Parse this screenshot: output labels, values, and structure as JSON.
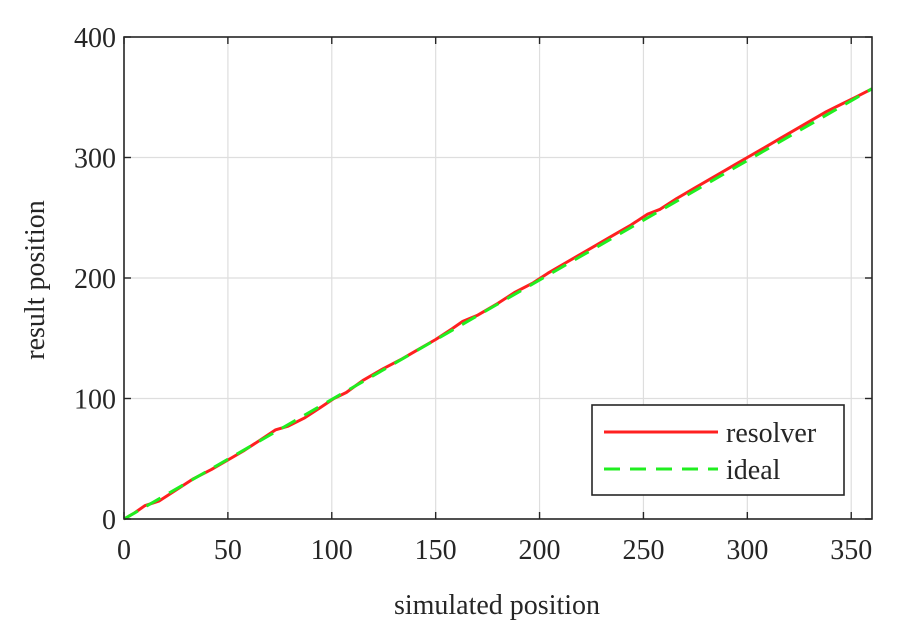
{
  "chart_data": {
    "type": "line",
    "title": "",
    "xlabel": "simulated position",
    "ylabel": "result position",
    "xlim": [
      0,
      360
    ],
    "ylim": [
      0,
      400
    ],
    "xticks": [
      0,
      50,
      100,
      150,
      200,
      250,
      300,
      350
    ],
    "yticks": [
      0,
      100,
      200,
      300,
      400
    ],
    "grid": true,
    "legend_position": "bottom-right",
    "series": [
      {
        "name": "resolver",
        "color": "#ff2020",
        "style": "solid",
        "points": [
          [
            0,
            0
          ],
          [
            5,
            5
          ],
          [
            10,
            11
          ],
          [
            17,
            15
          ],
          [
            25,
            24
          ],
          [
            33,
            33
          ],
          [
            42,
            41
          ],
          [
            50,
            49
          ],
          [
            58,
            57
          ],
          [
            66,
            66
          ],
          [
            73,
            74
          ],
          [
            79,
            77
          ],
          [
            87,
            84
          ],
          [
            95,
            93
          ],
          [
            101,
            100
          ],
          [
            107,
            105
          ],
          [
            115,
            115
          ],
          [
            125,
            125
          ],
          [
            134,
            133
          ],
          [
            142,
            141
          ],
          [
            150,
            149
          ],
          [
            158,
            158
          ],
          [
            163,
            164
          ],
          [
            170,
            169
          ],
          [
            180,
            179
          ],
          [
            188,
            188
          ],
          [
            197,
            196
          ],
          [
            204,
            204
          ],
          [
            212,
            212
          ],
          [
            220,
            220
          ],
          [
            228,
            228
          ],
          [
            236,
            236
          ],
          [
            244,
            244
          ],
          [
            252,
            253
          ],
          [
            258,
            257
          ],
          [
            266,
            266
          ],
          [
            274,
            274
          ],
          [
            280,
            280
          ],
          [
            287,
            287
          ],
          [
            294,
            294
          ],
          [
            300,
            300
          ],
          [
            308,
            308
          ],
          [
            316,
            316
          ],
          [
            324,
            324
          ],
          [
            332,
            332
          ],
          [
            338,
            338
          ],
          [
            345,
            344
          ],
          [
            352,
            350
          ],
          [
            360,
            357
          ]
        ]
      },
      {
        "name": "ideal",
        "color": "#20ee20",
        "style": "dashed",
        "points": [
          [
            0,
            0
          ],
          [
            360,
            357
          ]
        ]
      }
    ]
  }
}
